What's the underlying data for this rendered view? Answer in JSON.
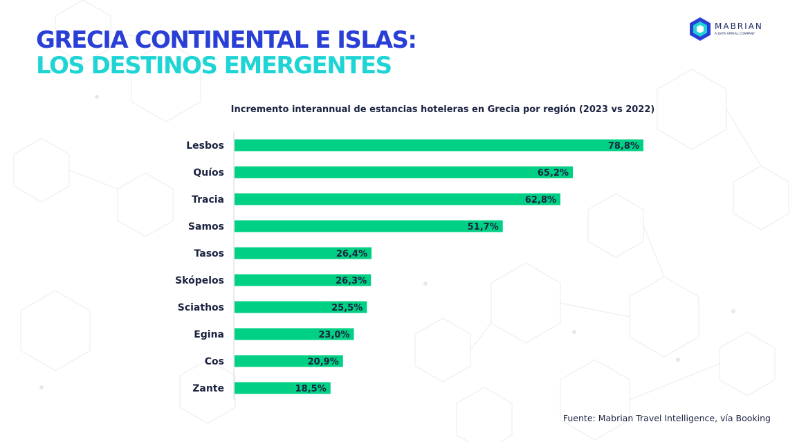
{
  "header": {
    "title_line1": "GRECIA CONTINENTAL E ISLAS:",
    "title_line2": "LOS DESTINOS EMERGENTES"
  },
  "logo": {
    "name": "MABRIAN",
    "tagline": "A DATA APPEAL COMPANY"
  },
  "colors": {
    "title_primary": "#2a3fd6",
    "title_accent": "#1fd4d4",
    "bar": "#00d084",
    "text": "#1b2240"
  },
  "chart_data": {
    "type": "bar",
    "orientation": "horizontal",
    "title": "Incremento interannual de estancias hoteleras en Grecia por región (2023 vs 2022)",
    "categories": [
      "Lesbos",
      "Quíos",
      "Tracia",
      "Samos",
      "Tasos",
      "Skópelos",
      "Sciathos",
      "Egina",
      "Cos",
      "Zante"
    ],
    "values": [
      78.8,
      65.2,
      62.8,
      51.7,
      26.4,
      26.3,
      25.5,
      23.0,
      20.9,
      18.5
    ],
    "value_labels": [
      "78,8%",
      "65,2%",
      "62,8%",
      "51,7%",
      "26,4%",
      "26,3%",
      "25,5%",
      "23,0%",
      "20,9%",
      "18,5%"
    ],
    "xlabel": "",
    "ylabel": "",
    "xlim": [
      0,
      80
    ],
    "grid": false
  },
  "footer": {
    "source": "Fuente: Mabrian Travel Intelligence, vía Booking"
  }
}
